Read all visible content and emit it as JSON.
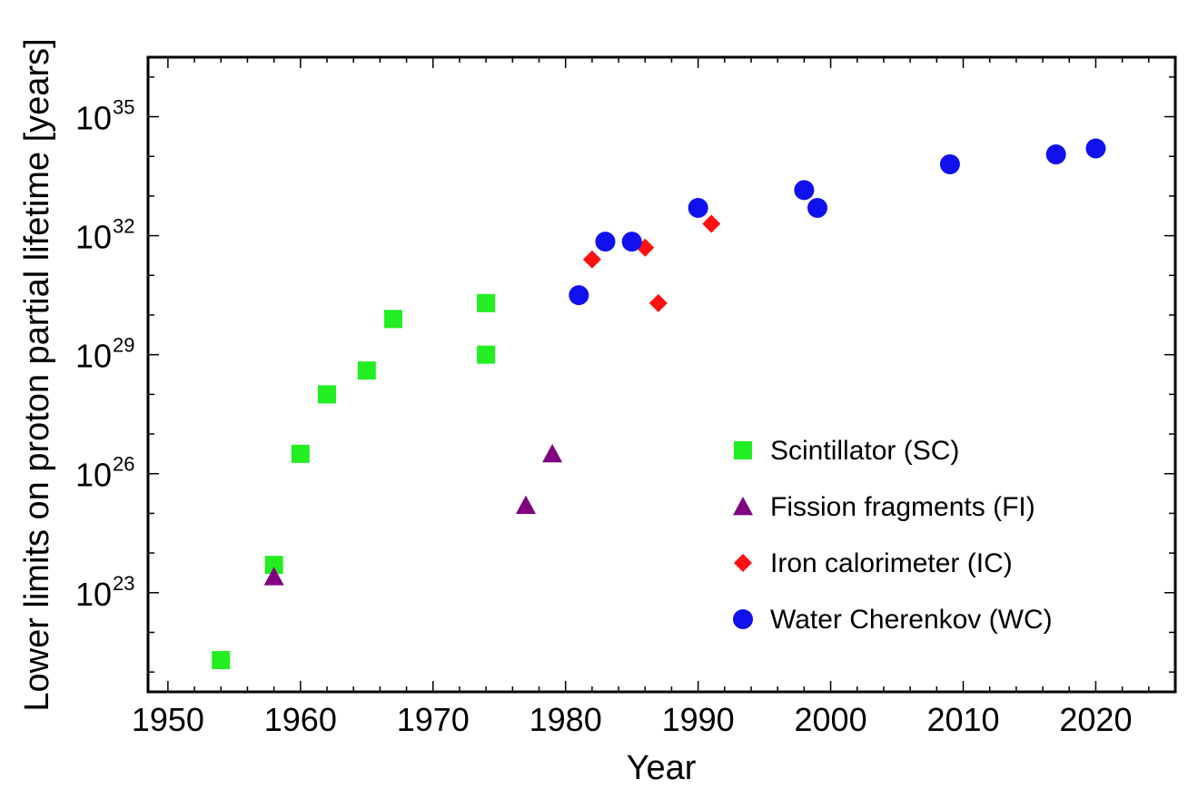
{
  "chart_data": {
    "type": "scatter",
    "title": "",
    "xlabel": "Year",
    "ylabel": "Lower limits on proton partial lifetime [years]",
    "xlim": [
      1948.5,
      2026
    ],
    "ylim_log10": [
      20.5,
      36.5
    ],
    "y_scale": "log",
    "x_ticks": [
      1950,
      1960,
      1970,
      1980,
      1990,
      2000,
      2010,
      2020
    ],
    "x_tick_labels": [
      "1950",
      "1960",
      "1970",
      "1980",
      "1990",
      "2000",
      "2010",
      "2020"
    ],
    "y_ticks": [
      {
        "base": "10",
        "exp": "23",
        "log10": 23
      },
      {
        "base": "10",
        "exp": "26",
        "log10": 26
      },
      {
        "base": "10",
        "exp": "29",
        "log10": 29
      },
      {
        "base": "10",
        "exp": "32",
        "log10": 32
      },
      {
        "base": "10",
        "exp": "35",
        "log10": 35
      }
    ],
    "legend_position": "lower-right inside",
    "series": [
      {
        "name": "Scintillator (SC)",
        "marker": "square",
        "color": "#22ee22",
        "points": [
          {
            "x": 1954,
            "log10y": 21.3
          },
          {
            "x": 1958,
            "log10y": 23.7
          },
          {
            "x": 1960,
            "log10y": 26.5
          },
          {
            "x": 1962,
            "log10y": 28.0
          },
          {
            "x": 1965,
            "log10y": 28.6
          },
          {
            "x": 1967,
            "log10y": 29.9
          },
          {
            "x": 1974,
            "log10y": 30.3
          },
          {
            "x": 1974,
            "log10y": 29.0
          }
        ]
      },
      {
        "name": "Fission fragments (FI)",
        "marker": "triangle",
        "color": "#800080",
        "points": [
          {
            "x": 1958,
            "log10y": 23.4
          },
          {
            "x": 1977,
            "log10y": 25.2
          },
          {
            "x": 1979,
            "log10y": 26.5
          }
        ]
      },
      {
        "name": "Iron calorimeter (IC)",
        "marker": "diamond",
        "color": "#ff1111",
        "points": [
          {
            "x": 1982,
            "log10y": 31.4
          },
          {
            "x": 1986,
            "log10y": 31.7
          },
          {
            "x": 1987,
            "log10y": 30.3
          },
          {
            "x": 1991,
            "log10y": 32.3
          }
        ]
      },
      {
        "name": "Water Cherenkov (WC)",
        "marker": "circle",
        "color": "#1111ee",
        "points": [
          {
            "x": 1981,
            "log10y": 30.5
          },
          {
            "x": 1983,
            "log10y": 31.85
          },
          {
            "x": 1985,
            "log10y": 31.85
          },
          {
            "x": 1990,
            "log10y": 32.7
          },
          {
            "x": 1998,
            "log10y": 33.15
          },
          {
            "x": 1999,
            "log10y": 32.7
          },
          {
            "x": 2009,
            "log10y": 33.8
          },
          {
            "x": 2017,
            "log10y": 34.05
          },
          {
            "x": 2020,
            "log10y": 34.2
          }
        ]
      }
    ]
  }
}
